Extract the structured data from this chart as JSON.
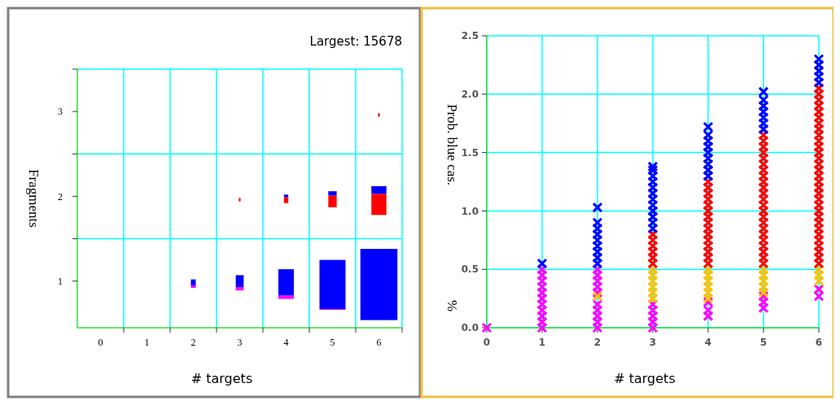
{
  "chart_data": [
    {
      "type": "bar",
      "xlabel": "# targets",
      "ylabel": "Fragments",
      "annotations": [
        "Largest: 15678"
      ],
      "categories": [
        "0",
        "1",
        "2",
        "3",
        "4",
        "5",
        "6"
      ],
      "ylim": [
        0.45,
        3.5
      ],
      "yticks": [
        1,
        2,
        3,
        {
          "value": 1.5,
          "label": null
        },
        {
          "value": 2.5,
          "label": null
        },
        {
          "value": 3.5,
          "label": null
        }
      ],
      "grid": true,
      "series": [
        {
          "color": "#ff00ff",
          "values": [
            null,
            null,
            0.04,
            0.04,
            0.04,
            0.01,
            null
          ],
          "base": [
            null,
            null,
            0.92,
            0.89,
            0.79,
            0.66,
            null
          ]
        },
        {
          "color": "#0000ff",
          "values": [
            null,
            null,
            0.07,
            0.14,
            0.31,
            0.58,
            0.84
          ],
          "base": [
            null,
            null,
            0.95,
            0.93,
            0.83,
            0.67,
            0.54
          ]
        },
        {
          "color": "#ff0000",
          "values": [
            null,
            null,
            null,
            0.04,
            0.07,
            0.14,
            0.25
          ],
          "base": [
            null,
            null,
            null,
            1.94,
            1.92,
            1.87,
            1.78
          ]
        },
        {
          "color": "#0000ff",
          "values": [
            null,
            null,
            null,
            null,
            0.03,
            0.05,
            0.09
          ],
          "base": [
            null,
            null,
            null,
            null,
            1.99,
            2.01,
            2.03
          ]
        },
        {
          "color": "#ff0000",
          "values": [
            null,
            null,
            null,
            null,
            null,
            null,
            0.04
          ],
          "base": [
            null,
            null,
            null,
            null,
            null,
            null,
            2.94
          ]
        }
      ]
    },
    {
      "type": "scatter",
      "xlabel": "# targets",
      "ylabel": "Prob. blue cas.",
      "annotations": [
        "%"
      ],
      "xlim": [
        0,
        6
      ],
      "xticks": [
        0,
        1,
        2,
        3,
        4,
        5,
        6
      ],
      "ylim": [
        0,
        2.5
      ],
      "yticks": [
        {
          "value": 0,
          "label": "0.0"
        },
        0.5,
        {
          "value": 1,
          "label": "1.0"
        },
        1.5,
        {
          "value": 2,
          "label": "2.0"
        },
        2.5
      ],
      "grid": true,
      "marker": "cross",
      "series": [
        {
          "color": "#ff00ff",
          "x": [
            0,
            1,
            1,
            1,
            1,
            1,
            1,
            1,
            1,
            1,
            1,
            1,
            2,
            2,
            2,
            2,
            2,
            2,
            2,
            2,
            2,
            2,
            3,
            3,
            3,
            3,
            3,
            4,
            4,
            4,
            5,
            5,
            5,
            6,
            6
          ],
          "values": [
            0,
            0,
            0.05,
            0.1,
            0.15,
            0.2,
            0.25,
            0.3,
            0.35,
            0.4,
            0.45,
            0.5,
            0,
            0.05,
            0.1,
            0.15,
            0.2,
            0.3,
            0.35,
            0.4,
            0.45,
            0.5,
            0,
            0.05,
            0.1,
            0.15,
            0.2,
            0.1,
            0.15,
            0.22,
            0.17,
            0.22,
            0.27,
            0.27,
            0.33
          ]
        },
        {
          "color": "#ffc000",
          "x": [
            2,
            3,
            3,
            3,
            3,
            3,
            3,
            4,
            4,
            4,
            4,
            4,
            4,
            5,
            5,
            5,
            5,
            5,
            6,
            6,
            6
          ],
          "values": [
            0.27,
            0.25,
            0.3,
            0.35,
            0.4,
            0.45,
            0.5,
            0.25,
            0.3,
            0.35,
            0.4,
            0.45,
            0.5,
            0.3,
            0.35,
            0.4,
            0.45,
            0.5,
            0.4,
            0.45,
            0.5
          ]
        },
        {
          "color": "#ff0000",
          "x": [
            3,
            3,
            3,
            3,
            3,
            3,
            4,
            4,
            4,
            4,
            4,
            4,
            4,
            4,
            4,
            4,
            4,
            4,
            4,
            4,
            4,
            5,
            5,
            5,
            5,
            5,
            5,
            5,
            5,
            5,
            5,
            5,
            5,
            5,
            5,
            5,
            5,
            5,
            5,
            5,
            5,
            5,
            5,
            5,
            6,
            6,
            6,
            6,
            6,
            6,
            6,
            6,
            6,
            6,
            6,
            6,
            6,
            6,
            6,
            6,
            6,
            6,
            6,
            6,
            6,
            6,
            6,
            6,
            6,
            6,
            6,
            6,
            6,
            6,
            6
          ],
          "values": [
            0.55,
            0.6,
            0.65,
            0.7,
            0.75,
            0.8,
            0.55,
            0.6,
            0.65,
            0.7,
            0.75,
            0.8,
            0.85,
            0.9,
            0.95,
            1,
            1.05,
            1.1,
            1.15,
            1.2,
            1.25,
            0.55,
            0.6,
            0.65,
            0.7,
            0.75,
            0.8,
            0.85,
            0.9,
            0.95,
            1,
            1.05,
            1.1,
            1.15,
            1.2,
            1.25,
            1.3,
            1.35,
            1.4,
            1.45,
            1.5,
            1.55,
            1.6,
            1.65,
            0.55,
            0.6,
            0.65,
            0.7,
            0.75,
            0.8,
            0.85,
            0.9,
            0.95,
            1,
            1.05,
            1.1,
            1.15,
            1.2,
            1.25,
            1.3,
            1.35,
            1.4,
            1.45,
            1.5,
            1.55,
            1.6,
            1.65,
            1.7,
            1.75,
            1.8,
            1.85,
            1.9,
            1.95,
            2,
            2.05
          ]
        },
        {
          "color": "#0000ff",
          "x": [
            1,
            2,
            2,
            2,
            2,
            2,
            2,
            2,
            2,
            2,
            3,
            3,
            3,
            3,
            3,
            3,
            3,
            3,
            3,
            3,
            3,
            3,
            4,
            4,
            4,
            4,
            4,
            4,
            4,
            4,
            4,
            5,
            5,
            5,
            5,
            5,
            5,
            5,
            6,
            6,
            6,
            6,
            6
          ],
          "values": [
            0.55,
            0.55,
            0.6,
            0.65,
            0.7,
            0.75,
            0.8,
            0.85,
            0.9,
            1.03,
            0.85,
            0.9,
            0.95,
            1,
            1.05,
            1.1,
            1.15,
            1.2,
            1.25,
            1.3,
            1.35,
            1.38,
            1.3,
            1.35,
            1.4,
            1.45,
            1.5,
            1.55,
            1.6,
            1.65,
            1.72,
            1.7,
            1.75,
            1.8,
            1.85,
            1.9,
            1.95,
            2.02,
            2.1,
            2.15,
            2.2,
            2.25,
            2.3
          ]
        }
      ]
    }
  ]
}
